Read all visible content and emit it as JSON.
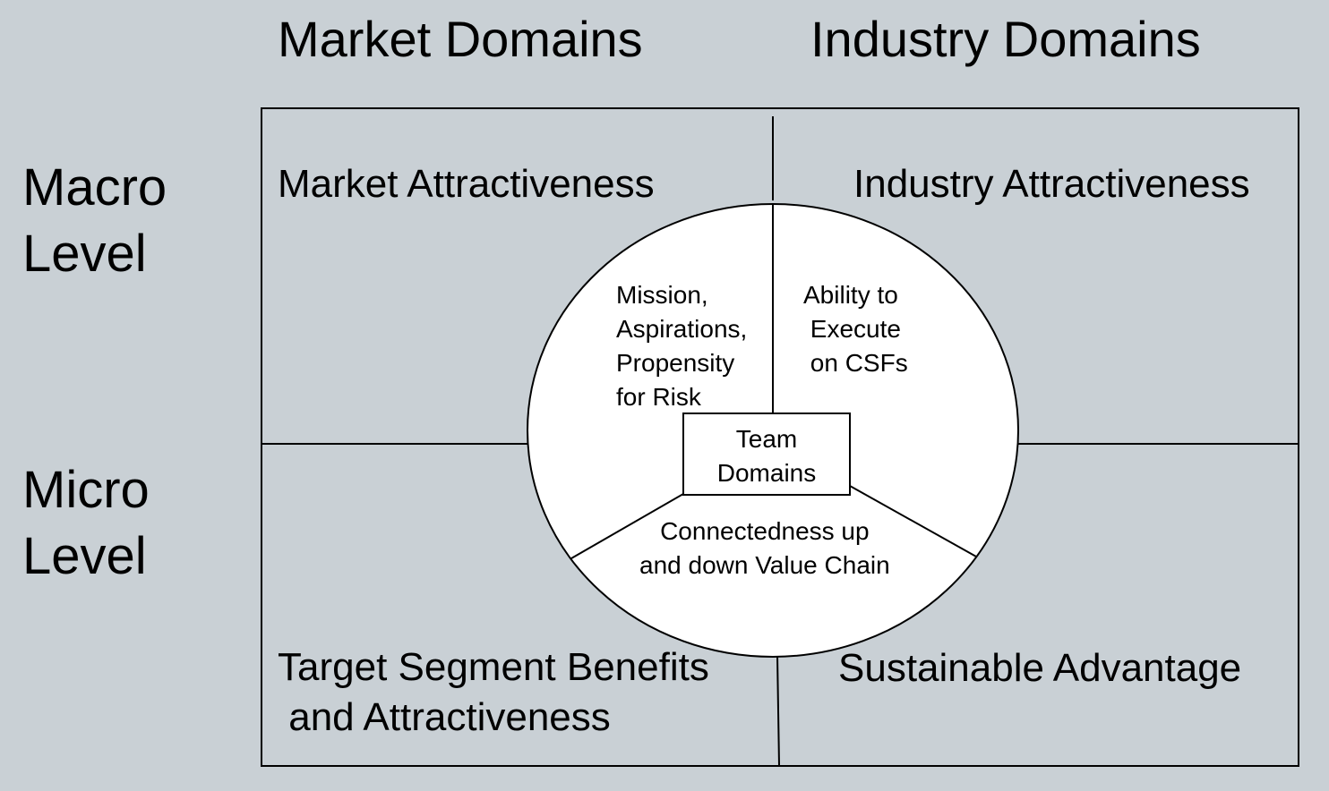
{
  "columns": {
    "market": "Market Domains",
    "industry": "Industry Domains"
  },
  "rows": {
    "macro": "Macro\nLevel",
    "micro": "Micro\nLevel"
  },
  "quadrants": {
    "top_left": "Market Attractiveness",
    "top_right": "Industry Attractiveness",
    "bottom_left": "Target Segment Benefits\n and Attractiveness",
    "bottom_right": "Sustainable Advantage"
  },
  "circle": {
    "segment_left": "Mission,\nAspirations,\nPropensity\nfor Risk",
    "segment_right": "Ability to\n Execute\n on CSFs",
    "segment_bottom": "Connectedness up\nand down Value Chain",
    "center_box": "Team\nDomains"
  },
  "colors": {
    "background": "#c9d0d5",
    "circle_fill": "#ffffff",
    "lines": "#000000"
  }
}
